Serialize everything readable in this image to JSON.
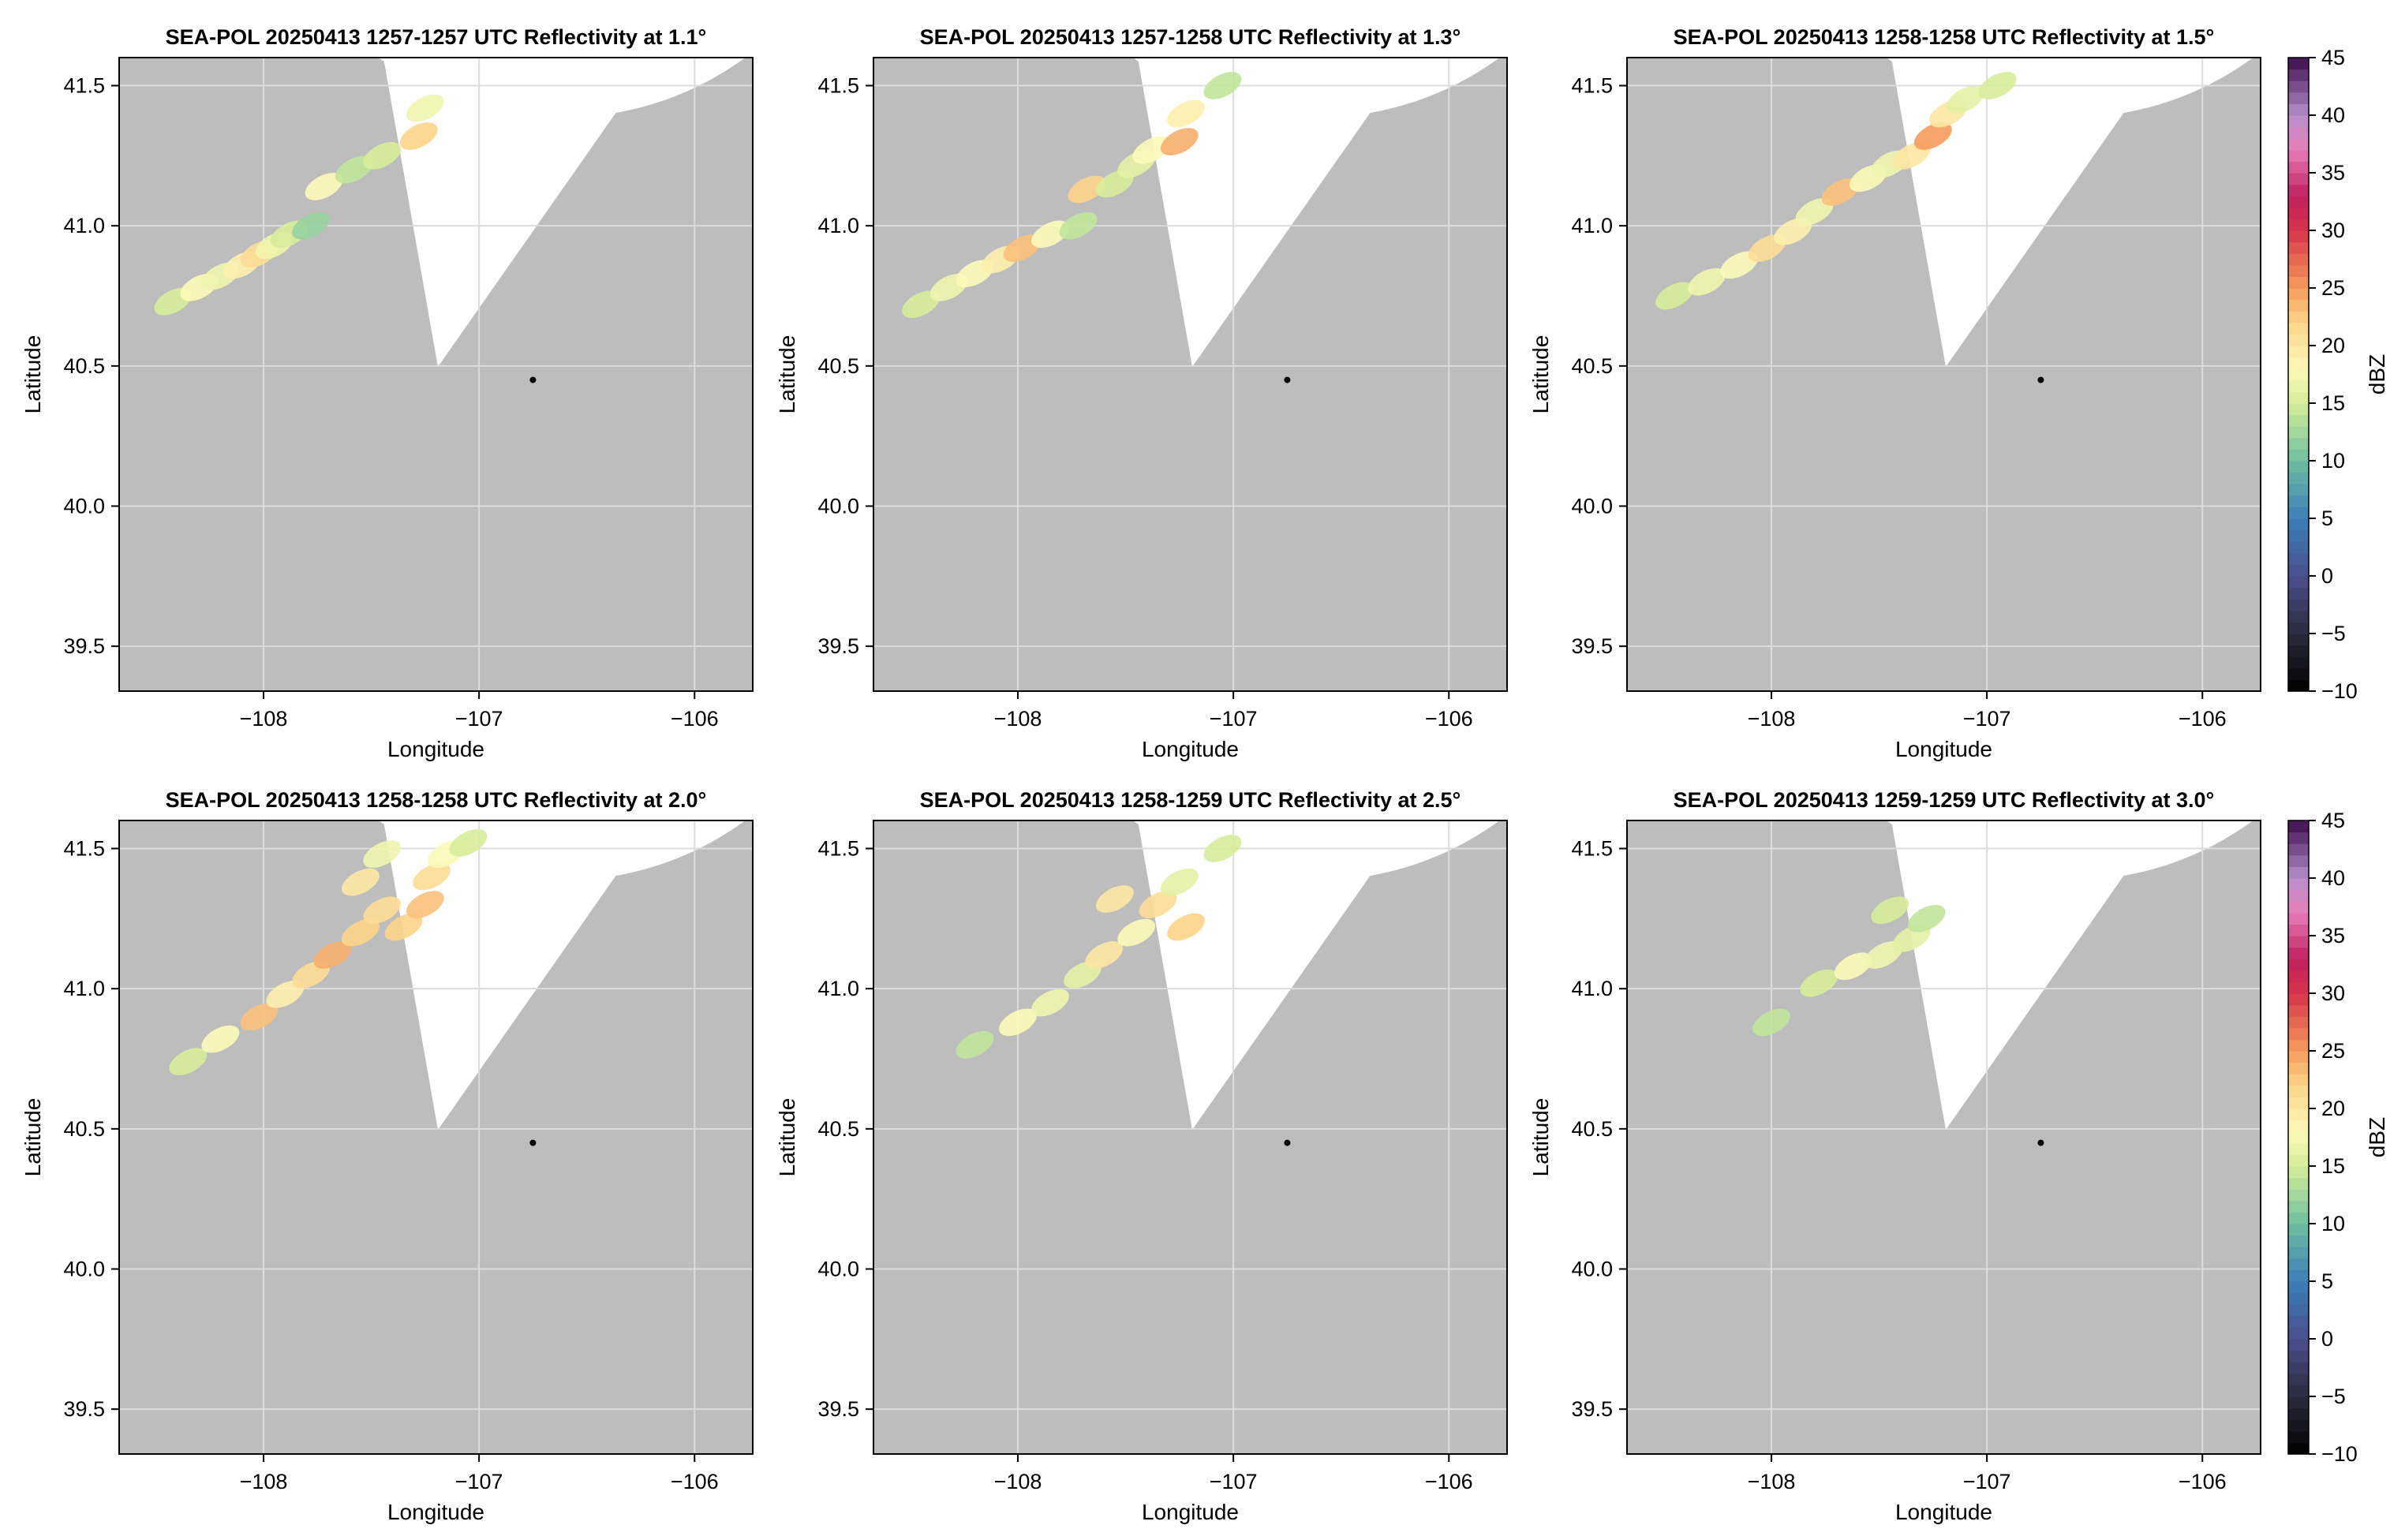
{
  "figure": {
    "colors": {
      "missing_fill": "#bdbdbd",
      "coverage_fill": "#ffffff",
      "grid": "#dcdcdc",
      "frame": "#000000",
      "radar_marker": "#000000"
    }
  },
  "chart_data": [
    {
      "type": "heatmap",
      "title": "SEA-POL 20250413 1257-1257 UTC Reflectivity at 1.1°",
      "xlabel": "Longitude",
      "ylabel": "Latitude",
      "xlim": [
        -108.67,
        -105.73
      ],
      "ylim": [
        39.34,
        41.6
      ],
      "xticks": [
        -108,
        -107,
        -106
      ],
      "xtick_labels": [
        "−108",
        "−107",
        "−106"
      ],
      "yticks": [
        39.5,
        40.0,
        40.5,
        41.0,
        41.5
      ],
      "ytick_labels": [
        "39.5",
        "40.0",
        "40.5",
        "41.0",
        "41.5"
      ],
      "grid": true,
      "radar_location": [
        -106.75,
        40.45
      ],
      "echoes": [
        {
          "lon": -108.42,
          "lat": 40.73,
          "dbz": 15
        },
        {
          "lon": -108.3,
          "lat": 40.78,
          "dbz": 18
        },
        {
          "lon": -108.2,
          "lat": 40.82,
          "dbz": 17
        },
        {
          "lon": -108.1,
          "lat": 40.86,
          "dbz": 19
        },
        {
          "lon": -108.02,
          "lat": 40.9,
          "dbz": 21
        },
        {
          "lon": -107.95,
          "lat": 40.93,
          "dbz": 17
        },
        {
          "lon": -107.88,
          "lat": 40.97,
          "dbz": 15
        },
        {
          "lon": -107.78,
          "lat": 41.0,
          "dbz": 12
        },
        {
          "lon": -107.72,
          "lat": 41.14,
          "dbz": 18
        },
        {
          "lon": -107.58,
          "lat": 41.2,
          "dbz": 14
        },
        {
          "lon": -107.45,
          "lat": 41.25,
          "dbz": 15
        },
        {
          "lon": -107.28,
          "lat": 41.32,
          "dbz": 22
        },
        {
          "lon": -107.25,
          "lat": 41.42,
          "dbz": 17
        }
      ]
    },
    {
      "type": "heatmap",
      "title": "SEA-POL 20250413 1257-1258 UTC Reflectivity at 1.3°",
      "xlabel": "Longitude",
      "ylabel": "Latitude",
      "xlim": [
        -108.67,
        -105.73
      ],
      "ylim": [
        39.34,
        41.6
      ],
      "xticks": [
        -108,
        -107,
        -106
      ],
      "xtick_labels": [
        "−108",
        "−107",
        "−106"
      ],
      "yticks": [
        39.5,
        40.0,
        40.5,
        41.0,
        41.5
      ],
      "ytick_labels": [
        "39.5",
        "40.0",
        "40.5",
        "41.0",
        "41.5"
      ],
      "grid": true,
      "radar_location": [
        -106.75,
        40.45
      ],
      "echoes": [
        {
          "lon": -108.45,
          "lat": 40.72,
          "dbz": 15
        },
        {
          "lon": -108.32,
          "lat": 40.78,
          "dbz": 17
        },
        {
          "lon": -108.2,
          "lat": 40.83,
          "dbz": 18
        },
        {
          "lon": -108.08,
          "lat": 40.88,
          "dbz": 19
        },
        {
          "lon": -107.98,
          "lat": 40.92,
          "dbz": 23
        },
        {
          "lon": -107.85,
          "lat": 40.97,
          "dbz": 18
        },
        {
          "lon": -107.72,
          "lat": 41.0,
          "dbz": 14
        },
        {
          "lon": -107.68,
          "lat": 41.13,
          "dbz": 22
        },
        {
          "lon": -107.55,
          "lat": 41.15,
          "dbz": 15
        },
        {
          "lon": -107.45,
          "lat": 41.22,
          "dbz": 16
        },
        {
          "lon": -107.38,
          "lat": 41.27,
          "dbz": 18
        },
        {
          "lon": -107.25,
          "lat": 41.3,
          "dbz": 24
        },
        {
          "lon": -107.22,
          "lat": 41.4,
          "dbz": 19
        },
        {
          "lon": -107.05,
          "lat": 41.5,
          "dbz": 14
        }
      ]
    },
    {
      "type": "heatmap",
      "title": "SEA-POL 20250413 1258-1258 UTC Reflectivity at 1.5°",
      "xlabel": "Longitude",
      "ylabel": "Latitude",
      "xlim": [
        -108.67,
        -105.73
      ],
      "ylim": [
        39.34,
        41.6
      ],
      "xticks": [
        -108,
        -107,
        -106
      ],
      "xtick_labels": [
        "−108",
        "−107",
        "−106"
      ],
      "yticks": [
        39.5,
        40.0,
        40.5,
        41.0,
        41.5
      ],
      "ytick_labels": [
        "39.5",
        "40.0",
        "40.5",
        "41.0",
        "41.5"
      ],
      "grid": true,
      "radar_location": [
        -106.75,
        40.45
      ],
      "echoes": [
        {
          "lon": -108.45,
          "lat": 40.75,
          "dbz": 15
        },
        {
          "lon": -108.3,
          "lat": 40.8,
          "dbz": 17
        },
        {
          "lon": -108.15,
          "lat": 40.86,
          "dbz": 18
        },
        {
          "lon": -108.02,
          "lat": 40.92,
          "dbz": 21
        },
        {
          "lon": -107.9,
          "lat": 40.98,
          "dbz": 19
        },
        {
          "lon": -107.8,
          "lat": 41.05,
          "dbz": 17
        },
        {
          "lon": -107.68,
          "lat": 41.12,
          "dbz": 23
        },
        {
          "lon": -107.55,
          "lat": 41.17,
          "dbz": 18
        },
        {
          "lon": -107.45,
          "lat": 41.22,
          "dbz": 17
        },
        {
          "lon": -107.35,
          "lat": 41.25,
          "dbz": 20
        },
        {
          "lon": -107.25,
          "lat": 41.32,
          "dbz": 25
        },
        {
          "lon": -107.18,
          "lat": 41.4,
          "dbz": 20
        },
        {
          "lon": -107.1,
          "lat": 41.45,
          "dbz": 16
        },
        {
          "lon": -106.95,
          "lat": 41.5,
          "dbz": 15
        }
      ]
    },
    {
      "type": "heatmap",
      "title": "SEA-POL 20250413 1258-1258 UTC Reflectivity at 2.0°",
      "xlabel": "Longitude",
      "ylabel": "Latitude",
      "xlim": [
        -108.67,
        -105.73
      ],
      "ylim": [
        39.34,
        41.6
      ],
      "xticks": [
        -108,
        -107,
        -106
      ],
      "xtick_labels": [
        "−108",
        "−107",
        "−106"
      ],
      "yticks": [
        39.5,
        40.0,
        40.5,
        41.0,
        41.5
      ],
      "ytick_labels": [
        "39.5",
        "40.0",
        "40.5",
        "41.0",
        "41.5"
      ],
      "grid": true,
      "radar_location": [
        -106.75,
        40.45
      ],
      "echoes": [
        {
          "lon": -108.35,
          "lat": 40.74,
          "dbz": 15
        },
        {
          "lon": -108.2,
          "lat": 40.82,
          "dbz": 18
        },
        {
          "lon": -108.02,
          "lat": 40.9,
          "dbz": 23
        },
        {
          "lon": -107.9,
          "lat": 40.98,
          "dbz": 19
        },
        {
          "lon": -107.78,
          "lat": 41.05,
          "dbz": 21
        },
        {
          "lon": -107.68,
          "lat": 41.12,
          "dbz": 24
        },
        {
          "lon": -107.55,
          "lat": 41.2,
          "dbz": 22
        },
        {
          "lon": -107.45,
          "lat": 41.28,
          "dbz": 21
        },
        {
          "lon": -107.35,
          "lat": 41.22,
          "dbz": 22
        },
        {
          "lon": -107.25,
          "lat": 41.3,
          "dbz": 23
        },
        {
          "lon": -107.22,
          "lat": 41.4,
          "dbz": 21
        },
        {
          "lon": -107.15,
          "lat": 41.48,
          "dbz": 18
        },
        {
          "lon": -107.55,
          "lat": 41.38,
          "dbz": 20
        },
        {
          "lon": -107.05,
          "lat": 41.52,
          "dbz": 15
        },
        {
          "lon": -107.45,
          "lat": 41.48,
          "dbz": 17
        }
      ]
    },
    {
      "type": "heatmap",
      "title": "SEA-POL 20250413 1258-1259 UTC Reflectivity at 2.5°",
      "xlabel": "Longitude",
      "ylabel": "Latitude",
      "xlim": [
        -108.67,
        -105.73
      ],
      "ylim": [
        39.34,
        41.6
      ],
      "xticks": [
        -108,
        -107,
        -106
      ],
      "xtick_labels": [
        "−108",
        "−107",
        "−106"
      ],
      "yticks": [
        39.5,
        40.0,
        40.5,
        41.0,
        41.5
      ],
      "ytick_labels": [
        "39.5",
        "40.0",
        "40.5",
        "41.0",
        "41.5"
      ],
      "grid": true,
      "radar_location": [
        -106.75,
        40.45
      ],
      "echoes": [
        {
          "lon": -108.2,
          "lat": 40.8,
          "dbz": 14
        },
        {
          "lon": -108.0,
          "lat": 40.88,
          "dbz": 18
        },
        {
          "lon": -107.85,
          "lat": 40.95,
          "dbz": 17
        },
        {
          "lon": -107.7,
          "lat": 41.05,
          "dbz": 16
        },
        {
          "lon": -107.6,
          "lat": 41.12,
          "dbz": 20
        },
        {
          "lon": -107.45,
          "lat": 41.2,
          "dbz": 18
        },
        {
          "lon": -107.35,
          "lat": 41.3,
          "dbz": 21
        },
        {
          "lon": -107.22,
          "lat": 41.22,
          "dbz": 22
        },
        {
          "lon": -107.55,
          "lat": 41.32,
          "dbz": 20
        },
        {
          "lon": -107.25,
          "lat": 41.38,
          "dbz": 16
        },
        {
          "lon": -107.05,
          "lat": 41.5,
          "dbz": 15
        }
      ]
    },
    {
      "type": "heatmap",
      "title": "SEA-POL 20250413 1259-1259 UTC Reflectivity at 3.0°",
      "xlabel": "Longitude",
      "ylabel": "Latitude",
      "xlim": [
        -108.67,
        -105.73
      ],
      "ylim": [
        39.34,
        41.6
      ],
      "xticks": [
        -108,
        -107,
        -106
      ],
      "xtick_labels": [
        "−108",
        "−107",
        "−106"
      ],
      "yticks": [
        39.5,
        40.0,
        40.5,
        41.0,
        41.5
      ],
      "ytick_labels": [
        "39.5",
        "40.0",
        "40.5",
        "41.0",
        "41.5"
      ],
      "grid": true,
      "radar_location": [
        -106.75,
        40.45
      ],
      "echoes": [
        {
          "lon": -108.0,
          "lat": 40.88,
          "dbz": 14
        },
        {
          "lon": -107.78,
          "lat": 41.02,
          "dbz": 15
        },
        {
          "lon": -107.62,
          "lat": 41.08,
          "dbz": 18
        },
        {
          "lon": -107.48,
          "lat": 41.12,
          "dbz": 17
        },
        {
          "lon": -107.35,
          "lat": 41.18,
          "dbz": 16
        },
        {
          "lon": -107.45,
          "lat": 41.28,
          "dbz": 15
        },
        {
          "lon": -107.28,
          "lat": 41.25,
          "dbz": 14
        }
      ]
    }
  ],
  "colorbar": {
    "label": "dBZ",
    "range": [
      -10,
      45
    ],
    "ticks": [
      -10,
      -5,
      0,
      5,
      10,
      15,
      20,
      25,
      30,
      35,
      40,
      45
    ],
    "tick_labels": [
      "−10",
      "−5",
      "0",
      "5",
      "10",
      "15",
      "20",
      "25",
      "30",
      "35",
      "40",
      "45"
    ],
    "stops": [
      {
        "v": -10,
        "c": "#000000"
      },
      {
        "v": -5,
        "c": "#2b2b3d"
      },
      {
        "v": 0,
        "c": "#4b4e8c"
      },
      {
        "v": 5,
        "c": "#3b7fb8"
      },
      {
        "v": 10,
        "c": "#6fbea0"
      },
      {
        "v": 15,
        "c": "#d6ed9a"
      },
      {
        "v": 18,
        "c": "#fdf9b9"
      },
      {
        "v": 22,
        "c": "#fdd48a"
      },
      {
        "v": 25,
        "c": "#f59b5c"
      },
      {
        "v": 30,
        "c": "#d7344a"
      },
      {
        "v": 33,
        "c": "#c01f5f"
      },
      {
        "v": 37,
        "c": "#e77eb8"
      },
      {
        "v": 40,
        "c": "#b58fcc"
      },
      {
        "v": 45,
        "c": "#3e0d4b"
      }
    ]
  }
}
